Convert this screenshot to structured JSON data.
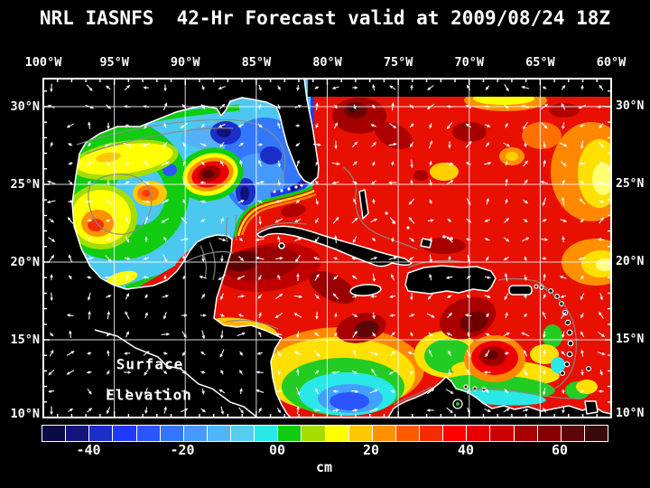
{
  "title": "NRL IASNFS  42-Hr Forecast valid at 2009/08/24 18Z",
  "map": {
    "annotation_line1": "Surface",
    "annotation_line2": "Elevation",
    "lon_labels": [
      "100°W",
      "95°W",
      "90°W",
      "85°W",
      "80°W",
      "75°W",
      "70°W",
      "65°W",
      "60°W"
    ],
    "lat_labels": [
      "30°N",
      "25°N",
      "20°N",
      "15°N",
      "10°N"
    ]
  },
  "colorbar": {
    "unit": "cm",
    "ticks": [
      "-40",
      "-20",
      "00",
      "20",
      "40",
      "60"
    ],
    "min_cm": -50,
    "max_cm": 70,
    "step_cm": 5,
    "colors": [
      "#0a0a46",
      "#14147e",
      "#1c2ec8",
      "#2038ff",
      "#2a55ff",
      "#3377ff",
      "#449aff",
      "#4fb4f8",
      "#55ccf0",
      "#2ae8e8",
      "#11cc11",
      "#a5dd00",
      "#ffff00",
      "#ffc800",
      "#ff9000",
      "#ff5a00",
      "#f32d00",
      "#ff0000",
      "#e60000",
      "#cc0000",
      "#a80000",
      "#870000",
      "#5c0606",
      "#3a0a0a"
    ]
  },
  "theme": {
    "background": "#000000",
    "frame_color": "#ffffff",
    "grid_color": "#ffffff",
    "land_color": "#000000",
    "coastline_color": "#ffffff",
    "contour_color": "#8a8a8a",
    "vector_color": "#ffffff",
    "sea_base_warm": "#e81000",
    "sea_base_gulf": "#4cc8f0"
  }
}
